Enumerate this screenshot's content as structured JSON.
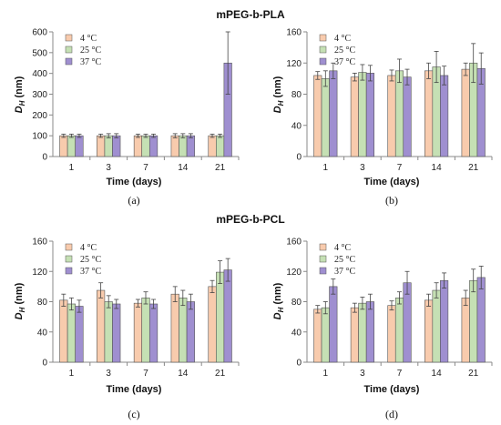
{
  "titles": [
    "mPEG-b-PLA",
    "mPEG-b-PCL"
  ],
  "colors": {
    "s4": "#f8cbad",
    "s25": "#c5e0b4",
    "s37": "#9f8fd0",
    "axis": "#888888",
    "bar_edge": "#555555"
  },
  "chart_data": [
    {
      "type": "bar",
      "categories": [
        "1",
        "3",
        "7",
        "14",
        "21"
      ],
      "series": [
        {
          "name": "4 °C",
          "values": [
            100,
            100,
            100,
            100,
            100
          ],
          "errors": [
            8,
            8,
            8,
            10,
            8
          ]
        },
        {
          "name": "25 °C",
          "values": [
            100,
            100,
            100,
            100,
            100
          ],
          "errors": [
            8,
            10,
            8,
            10,
            8
          ]
        },
        {
          "name": "37 °C",
          "values": [
            100,
            100,
            100,
            100,
            450
          ],
          "errors": [
            8,
            10,
            8,
            10,
            150
          ]
        }
      ],
      "xlabel": "Time (days)",
      "ylabel": "DH (nm)",
      "ylim": [
        0,
        600
      ],
      "yticks": [
        "0",
        "100",
        "200",
        "300",
        "400",
        "500",
        "600"
      ],
      "caption": "(a)",
      "legend": "top-left"
    },
    {
      "type": "bar",
      "categories": [
        "1",
        "3",
        "7",
        "14",
        "21"
      ],
      "series": [
        {
          "name": "4 °C",
          "values": [
            104,
            102,
            104,
            110,
            112
          ],
          "errors": [
            5,
            5,
            7,
            10,
            8
          ]
        },
        {
          "name": "25 °C",
          "values": [
            100,
            108,
            110,
            115,
            120
          ],
          "errors": [
            10,
            10,
            15,
            20,
            25
          ]
        },
        {
          "name": "37 °C",
          "values": [
            110,
            107,
            102,
            104,
            113
          ],
          "errors": [
            10,
            10,
            10,
            12,
            20
          ]
        }
      ],
      "xlabel": "Time (days)",
      "ylabel": "DH (nm)",
      "ylim": [
        0,
        160
      ],
      "yticks": [
        "0",
        "40",
        "80",
        "120",
        "160"
      ],
      "caption": "(b)",
      "legend": "top-left"
    },
    {
      "type": "bar",
      "categories": [
        "1",
        "3",
        "7",
        "14",
        "21"
      ],
      "series": [
        {
          "name": "4 °C",
          "values": [
            82,
            95,
            78,
            90,
            100
          ],
          "errors": [
            8,
            10,
            5,
            10,
            8
          ]
        },
        {
          "name": "25 °C",
          "values": [
            77,
            80,
            85,
            85,
            119
          ],
          "errors": [
            8,
            8,
            8,
            10,
            15
          ]
        },
        {
          "name": "37 °C",
          "values": [
            74,
            77,
            77,
            80,
            122
          ],
          "errors": [
            8,
            6,
            6,
            10,
            15
          ]
        }
      ],
      "xlabel": "Time (days)",
      "ylabel": "DH (nm)",
      "ylim": [
        0,
        160
      ],
      "yticks": [
        "0",
        "40",
        "80",
        "120",
        "160"
      ],
      "caption": "(c)",
      "legend": "top-left"
    },
    {
      "type": "bar",
      "categories": [
        "1",
        "3",
        "7",
        "14",
        "21"
      ],
      "series": [
        {
          "name": "4 °C",
          "values": [
            70,
            72,
            75,
            82,
            85
          ],
          "errors": [
            5,
            6,
            6,
            8,
            10
          ]
        },
        {
          "name": "25 °C",
          "values": [
            72,
            78,
            85,
            95,
            108
          ],
          "errors": [
            8,
            8,
            8,
            10,
            15
          ]
        },
        {
          "name": "37 °C",
          "values": [
            100,
            80,
            105,
            108,
            112
          ],
          "errors": [
            10,
            10,
            15,
            10,
            15
          ]
        }
      ],
      "xlabel": "Time (days)",
      "ylabel": "DH (nm)",
      "ylim": [
        0,
        160
      ],
      "yticks": [
        "0",
        "40",
        "80",
        "120",
        "160"
      ],
      "caption": "(d)",
      "legend": "top-left"
    }
  ]
}
